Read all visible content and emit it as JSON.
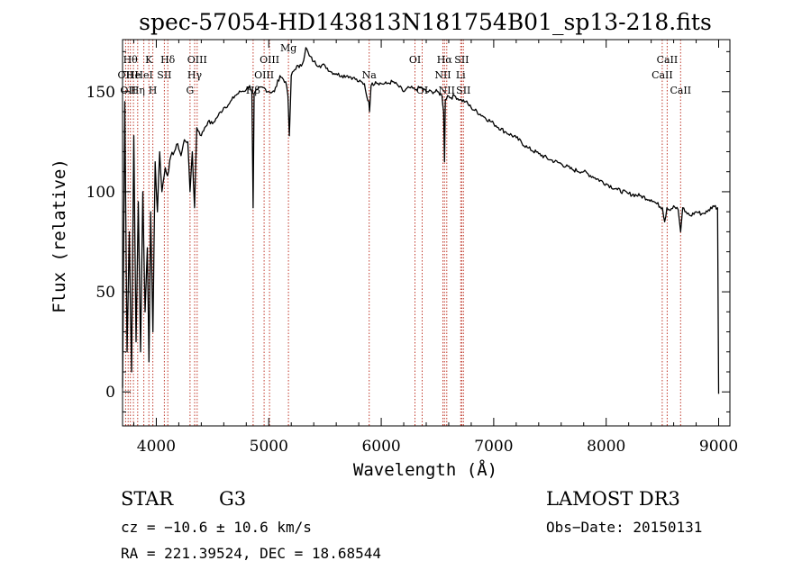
{
  "chart_data": {
    "type": "line",
    "title": "spec-57054-HD143813N181754B01_sp13-218.fits",
    "xlabel": "Wavelength (Å)",
    "ylabel": "Flux (relative)",
    "xlim": [
      3700,
      9100
    ],
    "ylim": [
      -17,
      176
    ],
    "xticks": [
      4000,
      5000,
      6000,
      7000,
      8000,
      9000
    ],
    "yticks": [
      0,
      50,
      100,
      150
    ],
    "series": [
      {
        "name": "spectrum",
        "x": [
          3700,
          3720,
          3740,
          3760,
          3780,
          3800,
          3820,
          3840,
          3860,
          3880,
          3900,
          3920,
          3935,
          3950,
          3970,
          3990,
          4010,
          4030,
          4050,
          4080,
          4100,
          4130,
          4160,
          4190,
          4220,
          4250,
          4280,
          4300,
          4320,
          4340,
          4360,
          4380,
          4400,
          4430,
          4460,
          4500,
          4550,
          4600,
          4650,
          4700,
          4750,
          4800,
          4830,
          4850,
          4861,
          4870,
          4900,
          4950,
          5000,
          5050,
          5100,
          5150,
          5170,
          5183,
          5200,
          5250,
          5270,
          5300,
          5330,
          5360,
          5400,
          5450,
          5500,
          5550,
          5600,
          5650,
          5700,
          5750,
          5800,
          5850,
          5870,
          5890,
          5896,
          5910,
          5950,
          6000,
          6050,
          6100,
          6150,
          6200,
          6250,
          6300,
          6350,
          6400,
          6450,
          6500,
          6540,
          6555,
          6563,
          6570,
          6590,
          6620,
          6650,
          6700,
          6750,
          6800,
          6900,
          7000,
          7100,
          7200,
          7300,
          7400,
          7500,
          7600,
          7700,
          7800,
          7900,
          8000,
          8100,
          8200,
          8300,
          8400,
          8450,
          8500,
          8520,
          8540,
          8560,
          8600,
          8640,
          8662,
          8680,
          8700,
          8750,
          8800,
          8850,
          8900,
          8950,
          8990,
          9000
        ],
        "values": [
          2,
          145,
          20,
          80,
          10,
          128,
          25,
          95,
          20,
          100,
          40,
          72,
          15,
          90,
          30,
          115,
          90,
          120,
          100,
          112,
          108,
          118,
          120,
          124,
          118,
          126,
          125,
          100,
          120,
          92,
          132,
          130,
          128,
          132,
          135,
          134,
          138,
          142,
          144,
          148,
          150,
          151,
          153,
          150,
          92,
          149,
          151,
          152,
          150,
          150,
          158,
          155,
          148,
          128,
          158,
          163,
          162,
          164,
          172,
          168,
          165,
          163,
          163,
          160,
          159,
          158,
          158,
          157,
          155,
          154,
          148,
          145,
          140,
          153,
          155,
          154,
          154,
          155,
          153,
          150,
          152,
          151,
          152,
          150,
          150,
          150,
          148,
          140,
          115,
          146,
          148,
          147,
          148,
          146,
          145,
          142,
          138,
          134,
          130,
          127,
          122,
          119,
          116,
          114,
          111,
          110,
          107,
          104,
          101,
          99,
          98,
          96,
          94,
          92,
          85,
          92,
          91,
          93,
          91,
          80,
          92,
          90,
          88,
          90,
          89,
          90,
          93,
          92,
          -1
        ]
      }
    ],
    "line_markers": [
      {
        "wave": 3727,
        "label": "OII",
        "row": 2
      },
      {
        "wave": 3750,
        "label": "OII",
        "row": 3
      },
      {
        "wave": 3770,
        "label": "Hθ",
        "row": 1
      },
      {
        "wave": 3797,
        "label": "He",
        "row": 2
      },
      {
        "wave": 3835,
        "label": "Hη",
        "row": 3
      },
      {
        "wave": 3889,
        "label": "HeI",
        "row": 2
      },
      {
        "wave": 3934,
        "label": "K",
        "row": 1
      },
      {
        "wave": 3969,
        "label": "H",
        "row": 3
      },
      {
        "wave": 4072,
        "label": "SII",
        "row": 2
      },
      {
        "wave": 4102,
        "label": "Hδ",
        "row": 1
      },
      {
        "wave": 4300,
        "label": "G",
        "row": 3
      },
      {
        "wave": 4341,
        "label": "Hγ",
        "row": 2
      },
      {
        "wave": 4363,
        "label": "OIII",
        "row": 1
      },
      {
        "wave": 4861,
        "label": "Hβ",
        "row": 3
      },
      {
        "wave": 4959,
        "label": "OIII",
        "row": 2
      },
      {
        "wave": 5007,
        "label": "OIII",
        "row": 1
      },
      {
        "wave": 5175,
        "label": "Mg",
        "row": 0
      },
      {
        "wave": 5893,
        "label": "Na",
        "row": 2
      },
      {
        "wave": 6300,
        "label": "OI",
        "row": 1
      },
      {
        "wave": 6364,
        "label": "OI",
        "row": 3
      },
      {
        "wave": 6548,
        "label": "NII",
        "row": 2
      },
      {
        "wave": 6563,
        "label": "Hα",
        "row": 1
      },
      {
        "wave": 6583,
        "label": "NII",
        "row": 3
      },
      {
        "wave": 6707,
        "label": "Li",
        "row": 2
      },
      {
        "wave": 6716,
        "label": "SII",
        "row": 1
      },
      {
        "wave": 6731,
        "label": "SII",
        "row": 3
      },
      {
        "wave": 8498,
        "label": "CaII",
        "row": 2
      },
      {
        "wave": 8542,
        "label": "CaII",
        "row": 1
      },
      {
        "wave": 8662,
        "label": "CaII",
        "row": 3
      }
    ]
  },
  "info": {
    "object_class": "STAR",
    "subclass": "G3",
    "survey": "LAMOST DR3",
    "redshift": "cz = −10.6 ± 10.6 km/s",
    "obs_date": "Obs−Date: 20150131",
    "coords": "RA = 221.39524, DEC =  18.68544"
  }
}
